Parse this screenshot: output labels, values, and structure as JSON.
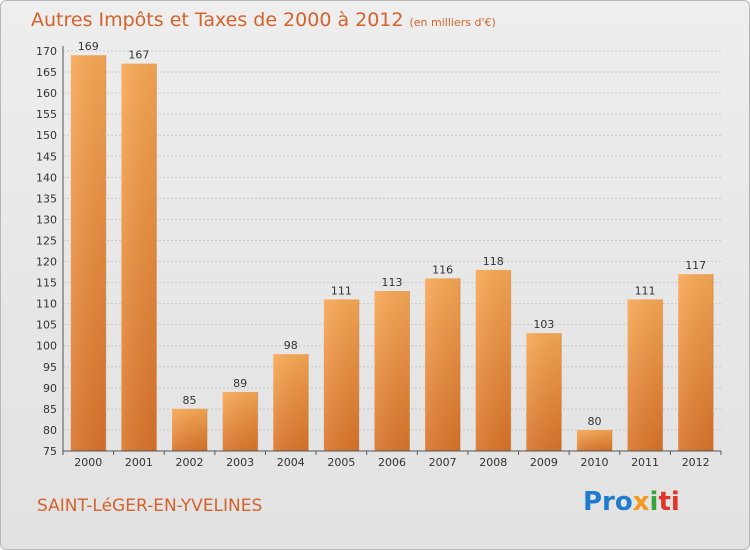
{
  "header": {
    "title": "Autres Impôts et Taxes de 2000 à 2012",
    "unit": "(en milliers d'€)"
  },
  "footer": {
    "city": "SAINT-LéGER-EN-YVELINES",
    "logo": [
      "Pro",
      "x",
      "i",
      "ti"
    ]
  },
  "colors": {
    "accent": "#d4622b",
    "bar_light": "#f8a855",
    "bar_dark": "#d9742a"
  },
  "chart_data": {
    "type": "bar",
    "title": "Autres Impôts et Taxes de 2000 à 2012",
    "subtitle": "(en milliers d'€)",
    "xlabel": "",
    "ylabel": "",
    "categories": [
      "2000",
      "2001",
      "2002",
      "2003",
      "2004",
      "2005",
      "2006",
      "2007",
      "2008",
      "2009",
      "2010",
      "2011",
      "2012"
    ],
    "values": [
      169,
      167,
      85,
      89,
      98,
      111,
      113,
      116,
      118,
      103,
      80,
      111,
      117
    ],
    "ylim": [
      75,
      170
    ],
    "yticks": [
      75,
      80,
      85,
      90,
      95,
      100,
      105,
      110,
      115,
      120,
      125,
      130,
      135,
      140,
      145,
      150,
      155,
      160,
      165,
      170
    ],
    "grid": true,
    "legend": "none"
  }
}
